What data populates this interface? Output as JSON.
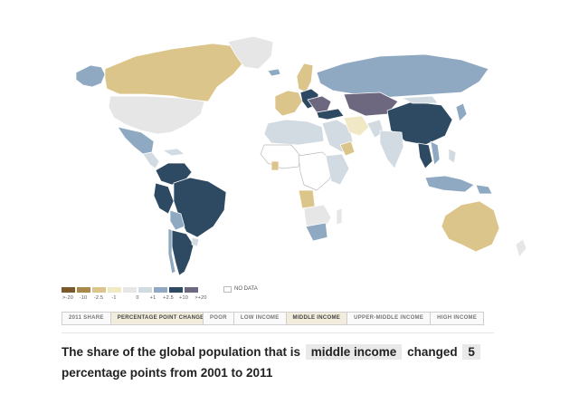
{
  "legend": {
    "ticks": [
      ">-20",
      "-10",
      "-2.5",
      "-1",
      "0",
      "+1",
      "+2.5",
      "+10",
      ">+20"
    ],
    "colors": [
      "#7b5a2a",
      "#a8894a",
      "#dcc58a",
      "#f1e8c6",
      "#e6e6e6",
      "#d2dae2",
      "#8ea9c1",
      "#2d4a62",
      "#6d6780"
    ],
    "no_data_label": "NO DATA"
  },
  "view_toggle": {
    "options": [
      "2011 SHARE",
      "PERCENTAGE POINT CHANGE"
    ],
    "selected": "PERCENTAGE POINT CHANGE"
  },
  "income_toggle": {
    "options": [
      "POOR",
      "LOW INCOME",
      "MIDDLE INCOME",
      "UPPER-MIDDLE INCOME",
      "HIGH INCOME"
    ],
    "selected": "MIDDLE INCOME"
  },
  "headline": {
    "prefix": "The share of the global population that is",
    "category": "middle income",
    "verb": "changed",
    "value": "5",
    "suffix": "percentage points from 2001 to 2011"
  },
  "map_colors": {
    "no_data": "#ffffff",
    "neutral": "#e6e6e6",
    "border": "#ffffff"
  }
}
